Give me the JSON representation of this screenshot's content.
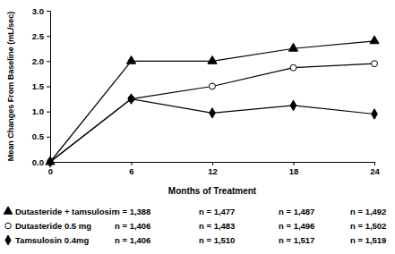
{
  "chart_data": {
    "type": "line",
    "x_label": "Months of Treatment",
    "y_label": "Mean Changes From Baseline (mL/sec)",
    "x": [
      0,
      6,
      12,
      18,
      24
    ],
    "xlim": [
      0,
      24
    ],
    "xticks": [
      0,
      6,
      12,
      18,
      24
    ],
    "ylim": [
      0,
      3
    ],
    "yticks": [
      {
        "value": 0,
        "label": "0.0"
      },
      0.5,
      {
        "value": 1,
        "label": "1.0"
      },
      1.5,
      {
        "value": 2,
        "label": "2.0"
      },
      2.5,
      {
        "value": 3,
        "label": "3.0"
      }
    ],
    "grid": false,
    "legend": "bottom",
    "series": [
      {
        "name": "Dutasteride + tamsulosin",
        "color": "#000000",
        "marker": "triangle",
        "line_style": "solid",
        "values": [
          0,
          2.0,
          2.0,
          2.25,
          2.4
        ],
        "n_labels": [
          "n = 1,388",
          "n = 1,477",
          "n = 1,487",
          "n = 1,492"
        ]
      },
      {
        "name": "Dutasteride 0.5 mg",
        "color": "#000000",
        "marker": "circle-open",
        "line_style": "solid",
        "values": [
          0,
          1.25,
          1.5,
          1.87,
          1.95
        ],
        "n_labels": [
          "n = 1,406",
          "n = 1,483",
          "n = 1,496",
          "n = 1,502"
        ]
      },
      {
        "name": "Tamsulosin 0.4mg",
        "color": "#000000",
        "marker": "diamond",
        "line_style": "solid",
        "values": [
          0,
          1.25,
          0.97,
          1.12,
          0.95
        ],
        "n_labels": [
          "n = 1,406",
          "n = 1,510",
          "n = 1,517",
          "n = 1,519"
        ]
      }
    ]
  }
}
